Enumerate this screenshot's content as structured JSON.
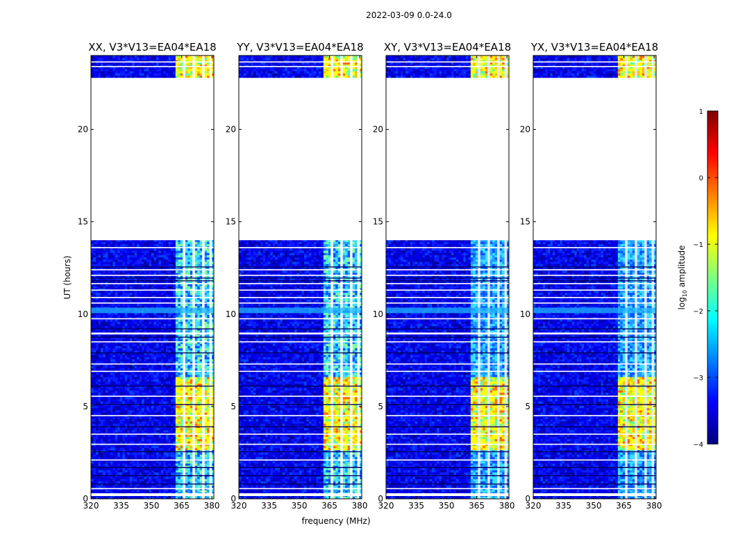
{
  "figure": {
    "suptitle": "2022-03-09 0.0-24.0",
    "xlabel": "frequency (MHz)",
    "ylabel": "UT (hours)"
  },
  "chart_data": {
    "type": "heatmap",
    "title": "2022-03-09 0.0-24.0",
    "xlabel": "frequency (MHz)",
    "ylabel": "UT (hours)",
    "xlim": [
      320,
      381
    ],
    "ylim": [
      0,
      24
    ],
    "x_ticks": [
      320,
      335,
      350,
      365,
      380
    ],
    "y_ticks": [
      0,
      5,
      10,
      15,
      20
    ],
    "panels": [
      {
        "name": "XX",
        "title": "XX, V3*V13=EA04*EA18"
      },
      {
        "name": "YY",
        "title": "YY, V3*V13=EA04*EA18"
      },
      {
        "name": "XY",
        "title": "XY, V3*V13=EA04*EA18"
      },
      {
        "name": "YX",
        "title": "YX, V3*V13=EA04*EA18"
      }
    ],
    "time_blocks_hours": [
      [
        0.0,
        8.9
      ],
      [
        9.0,
        14.0
      ],
      [
        22.8,
        24.0
      ]
    ],
    "data_gaps_hours": [
      [
        0.15,
        0.3
      ],
      [
        8.9,
        9.0
      ],
      [
        14.0,
        22.8
      ]
    ],
    "bright_band_mhz": [
      361,
      380
    ],
    "strong_emission_hours": [
      [
        2.6,
        6.5
      ],
      [
        22.8,
        24.0
      ]
    ],
    "colorbar": {
      "label": "log10 amplitude",
      "range": [
        -4,
        1
      ],
      "ticks": [
        1,
        0,
        -1,
        -2,
        -3,
        -4
      ],
      "colormap": "jet",
      "colors": [
        "#00007f",
        "#0000ff",
        "#007fff",
        "#00ffff",
        "#7fff7f",
        "#ffff00",
        "#ff7f00",
        "#ff0000",
        "#7f0000"
      ]
    }
  }
}
